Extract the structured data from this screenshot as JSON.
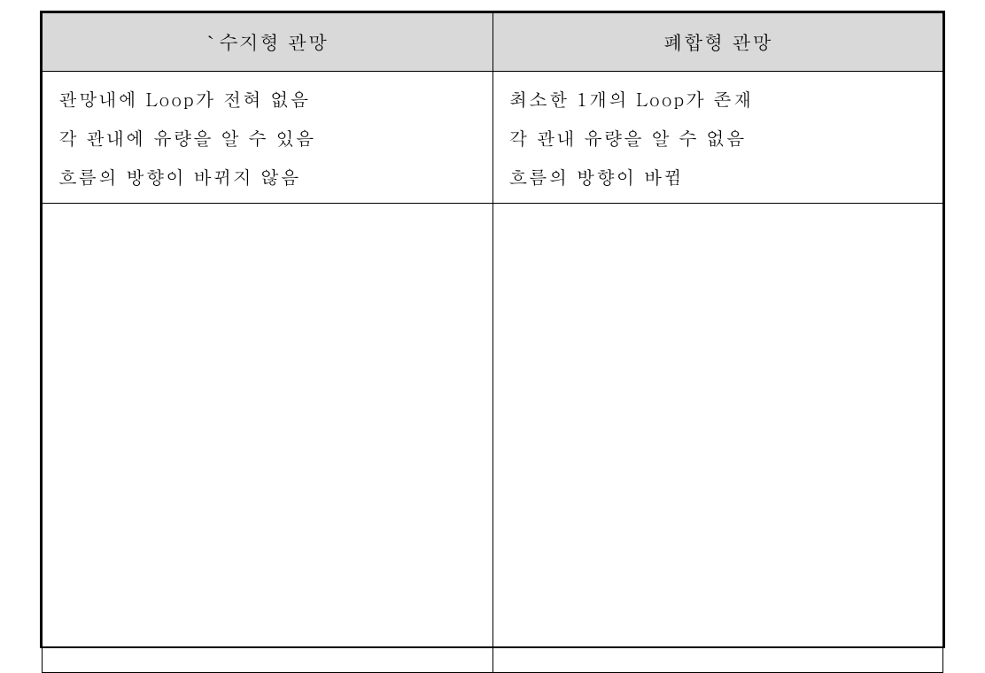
{
  "table": {
    "type": "table",
    "columns": 2,
    "rows": 3,
    "background_color": "#ffffff",
    "border_color": "#000000",
    "outer_border_width": 2.5,
    "inner_border_width": 1,
    "header_background": "#d9d9d9",
    "text_color": "#000000",
    "header_fontsize": 22,
    "body_fontsize": 21,
    "line_height": 2.1,
    "headers": [
      "`수지형 관망",
      "폐합형 관망"
    ],
    "body_rows": [
      {
        "left_lines": [
          "관망내에 Loop가 전혀 없음",
          "각 관내에 유량을 알 수 있음",
          "흐름의 방향이 바뀌지 않음"
        ],
        "right_lines": [
          "최소한 1개의 Loop가 존재",
          "각 관내 유량을 알 수 없음",
          "흐름의 방향이 바뀜"
        ]
      }
    ],
    "empty_row_height": 530
  }
}
